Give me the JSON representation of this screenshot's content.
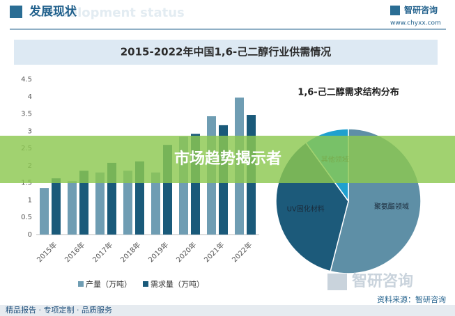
{
  "page": {
    "header": "发展现状",
    "header_en": "Development status",
    "logo": "智研咨询",
    "url": "www.chyxx.com",
    "banner": "市场趋势揭示者",
    "source": "资料来源：智研咨询",
    "footer": "精品报告 · 专项定制 · 品质服务",
    "watermark": "智研咨询"
  },
  "chart_data": [
    {
      "type": "bar",
      "title": "2015-2022年中国1,6-己二醇行业供需情况",
      "categories": [
        "2015年",
        "2016年",
        "2017年",
        "2018年",
        "2019年",
        "2020年",
        "2021年",
        "2022年"
      ],
      "series": [
        {
          "name": "产量（万吨）",
          "color": "#6f9db3",
          "values": [
            1.35,
            1.55,
            1.8,
            1.85,
            1.8,
            2.84,
            3.43,
            3.97
          ]
        },
        {
          "name": "需求量（万吨）",
          "color": "#1a5a7a",
          "values": [
            1.63,
            1.85,
            2.08,
            2.12,
            2.6,
            2.92,
            3.17,
            3.47
          ]
        }
      ],
      "ylim": [
        0,
        4.5
      ],
      "yticks": [
        0,
        0.5,
        1,
        1.5,
        2,
        2.5,
        3,
        3.5,
        4,
        4.5
      ]
    },
    {
      "type": "pie",
      "title": "1,6-己二醇需求结构分布",
      "categories": [
        "聚氨酯领域",
        "UV固化材料",
        "其他领域"
      ],
      "values": [
        54,
        36,
        10
      ],
      "colors": [
        "#5e8fa6",
        "#1c5a7a",
        "#1fa0cf"
      ]
    }
  ]
}
